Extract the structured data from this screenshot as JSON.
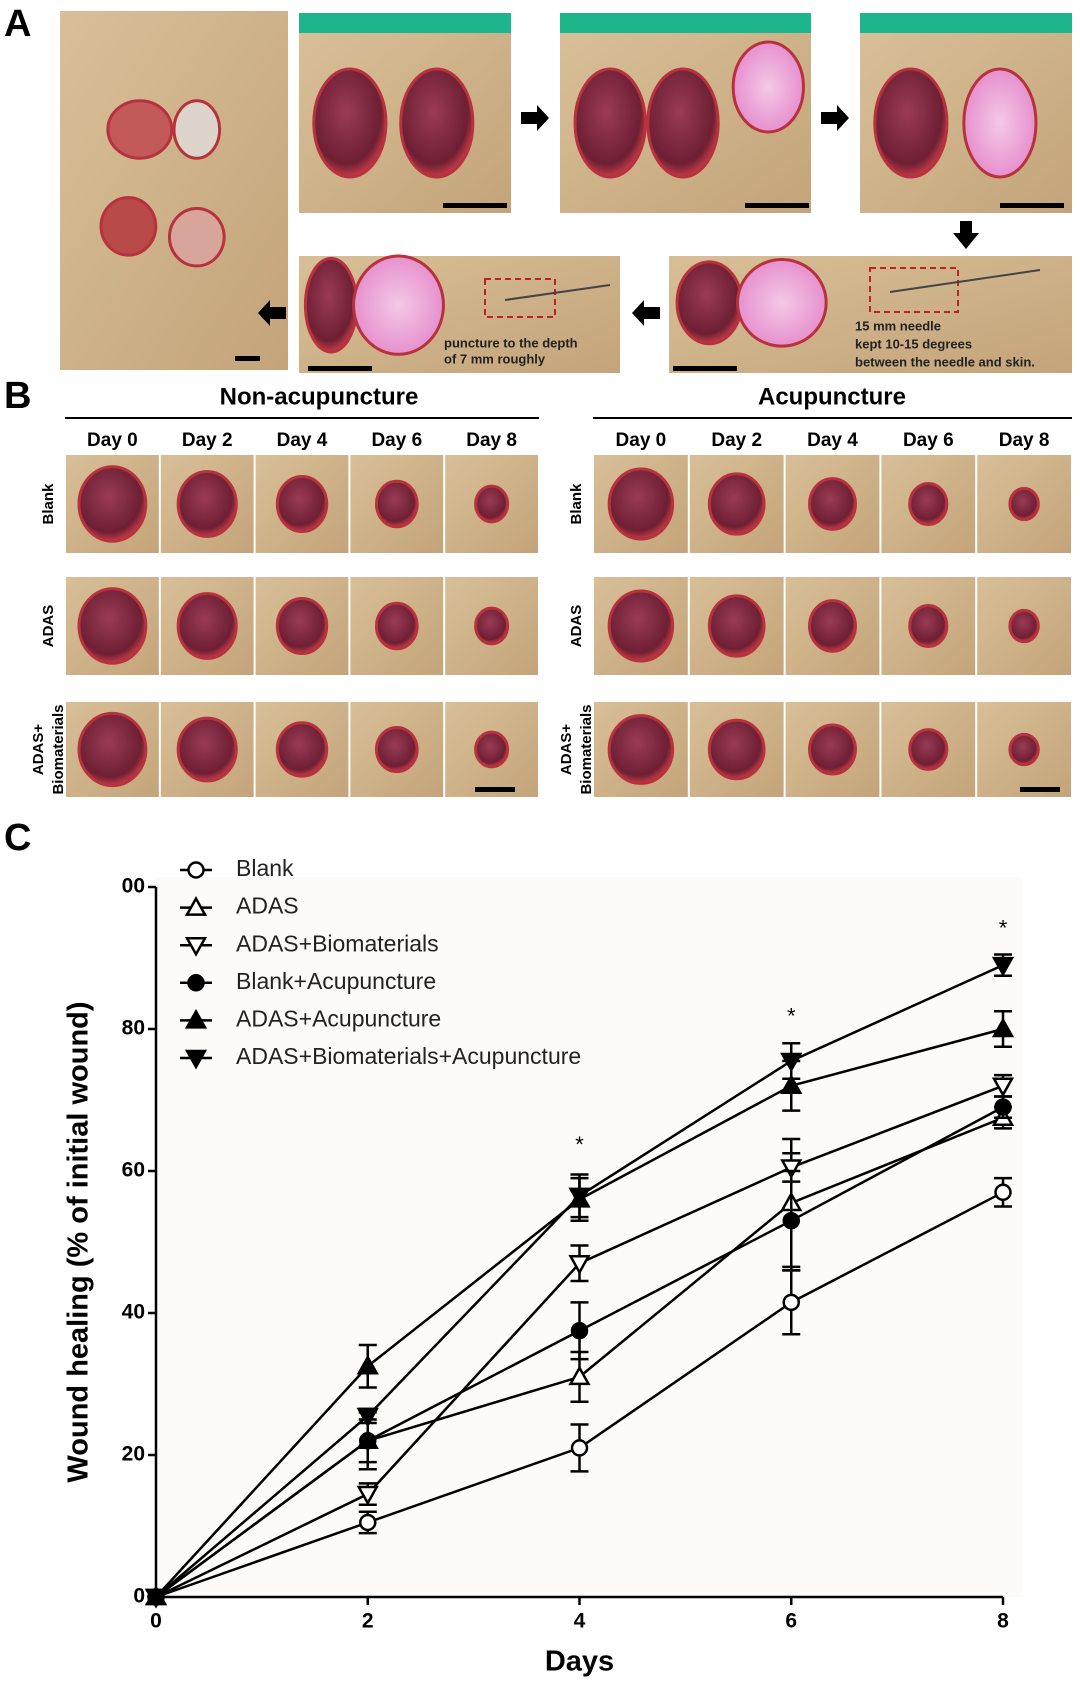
{
  "panels": {
    "a": {
      "label": "A",
      "note_left": [
        "puncture to the depth",
        "of 7 mm roughly"
      ],
      "note_right": [
        "15 mm needle",
        "kept 10-15 degrees",
        "between the needle and skin."
      ]
    },
    "b": {
      "label": "B",
      "groups": [
        {
          "title": "Non-acupuncture",
          "days": [
            "Day 0",
            "Day 2",
            "Day 4",
            "Day 6",
            "Day 8"
          ],
          "rows": [
            [
              "Blank"
            ],
            [
              "ADAS"
            ],
            [
              "ADAS+",
              "Biomaterials"
            ]
          ]
        },
        {
          "title": "Acupuncture",
          "days": [
            "Day 0",
            "Day 2",
            "Day 4",
            "Day 6",
            "Day 8"
          ],
          "rows": [
            [
              "Blank"
            ],
            [
              "ADAS"
            ],
            [
              "ADAS+",
              "Biomaterials"
            ]
          ]
        }
      ]
    },
    "c": {
      "label": "C"
    }
  },
  "chart_data": {
    "type": "line",
    "xlabel": "Days",
    "ylabel": "Wound healing (% of initial wound)",
    "x": [
      0,
      2,
      4,
      6,
      8
    ],
    "xlim": [
      0,
      8
    ],
    "xticks": [
      0,
      2,
      4,
      6,
      8
    ],
    "ylim": [
      0,
      100
    ],
    "yticks": [
      0,
      20,
      40,
      60,
      80,
      {
        "value": 100,
        "label": "00"
      }
    ],
    "series": [
      {
        "name": "Blank",
        "color": "#000000",
        "marker": "circle",
        "filled": false,
        "values": [
          0,
          10.5,
          21,
          41.5,
          57
        ],
        "errors": [
          0,
          1.5,
          3.3,
          4.5,
          2
        ]
      },
      {
        "name": "ADAS",
        "color": "#000000",
        "marker": "triangle-up",
        "filled": false,
        "values": [
          0,
          22,
          31,
          55.5,
          67.5
        ],
        "errors": [
          0,
          3,
          3.5,
          9,
          1.5
        ]
      },
      {
        "name": "ADAS+Biomaterials",
        "color": "#000000",
        "marker": "triangle-down",
        "filled": false,
        "values": [
          0,
          14.5,
          47,
          60.5,
          72
        ],
        "errors": [
          0,
          1.5,
          2.5,
          2,
          1.5
        ]
      },
      {
        "name": "Blank+Acupuncture",
        "color": "#000000",
        "marker": "circle",
        "filled": true,
        "values": [
          0,
          22,
          37.5,
          53,
          69
        ],
        "errors": [
          0,
          4,
          4,
          7,
          1.5
        ]
      },
      {
        "name": "ADAS+Acupuncture",
        "color": "#000000",
        "marker": "triangle-up",
        "filled": true,
        "values": [
          0,
          32.5,
          56,
          72,
          80
        ],
        "errors": [
          0,
          3,
          3,
          3.5,
          2.5
        ]
      },
      {
        "name": "ADAS+Biomaterials+Acupuncture",
        "color": "#000000",
        "marker": "triangle-down",
        "filled": true,
        "values": [
          0,
          25.5,
          56.5,
          75.5,
          89
        ],
        "errors": [
          0,
          1,
          3,
          2.5,
          1.5
        ]
      }
    ],
    "annotations": [
      {
        "text": "*",
        "x": 4,
        "y": 63.5
      },
      {
        "text": "*",
        "x": 6,
        "y": 81.6
      },
      {
        "text": "*",
        "x": 8,
        "y": 94
      }
    ]
  }
}
